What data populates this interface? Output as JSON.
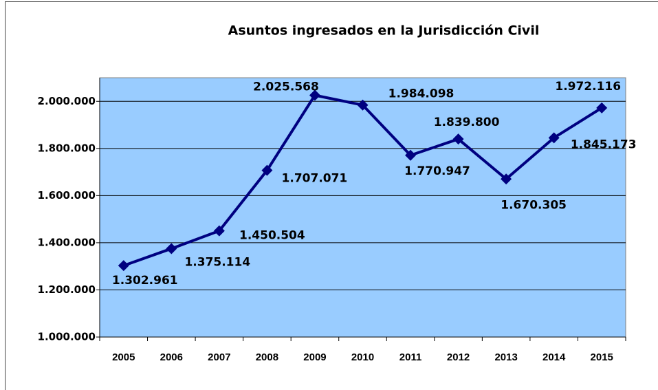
{
  "chart_data": {
    "type": "line",
    "title": "Asuntos ingresados en la Jurisdicción Civil",
    "categories": [
      "2005",
      "2006",
      "2007",
      "2008",
      "2009",
      "2010",
      "2011",
      "2012",
      "2013",
      "2014",
      "2015"
    ],
    "series": [
      {
        "name": "Asuntos ingresados",
        "color": "#000080",
        "values": [
          1302961,
          1375114,
          1450504,
          1707071,
          2025568,
          1984098,
          1770947,
          1839800,
          1670305,
          1845173,
          1972116
        ],
        "value_labels": [
          "1.302.961",
          "1.375.114",
          "1.450.504",
          "1.707.071",
          "2.025.568",
          "1.984.098",
          "1.770.947",
          "1.839.800",
          "1.670.305",
          "1.845.173",
          "1.972.116"
        ]
      }
    ],
    "ylim": [
      1000000,
      2100000
    ],
    "yticks": [
      {
        "value": 1000000,
        "label": "1.000.000"
      },
      {
        "value": 1200000,
        "label": "1.200.000"
      },
      {
        "value": 1400000,
        "label": "1.400.000"
      },
      {
        "value": 1600000,
        "label": "1.600.000"
      },
      {
        "value": 1800000,
        "label": "1.800.000"
      },
      {
        "value": 2000000,
        "label": "2.000.000"
      }
    ],
    "grid": true,
    "background": "#99ccff"
  }
}
